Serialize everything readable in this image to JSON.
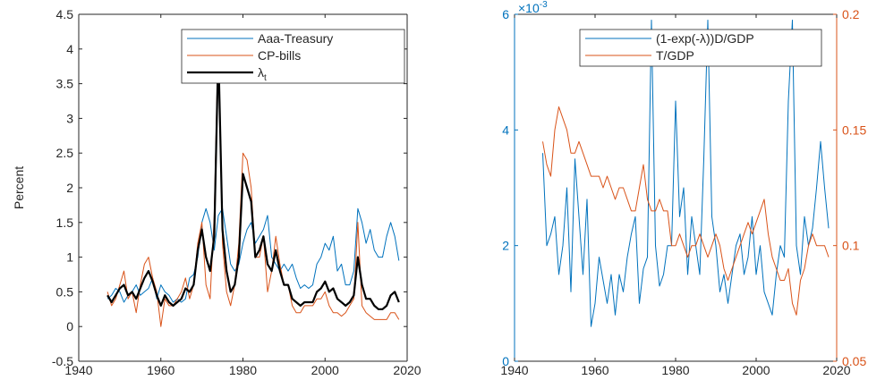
{
  "chart_data": [
    {
      "type": "line",
      "ylabel": "Percent",
      "x": [
        1947,
        1948,
        1949,
        1950,
        1951,
        1952,
        1953,
        1954,
        1955,
        1956,
        1957,
        1958,
        1959,
        1960,
        1961,
        1962,
        1963,
        1964,
        1965,
        1966,
        1967,
        1968,
        1969,
        1970,
        1971,
        1972,
        1973,
        1974,
        1975,
        1976,
        1977,
        1978,
        1979,
        1980,
        1981,
        1982,
        1983,
        1984,
        1985,
        1986,
        1987,
        1988,
        1989,
        1990,
        1991,
        1992,
        1993,
        1994,
        1995,
        1996,
        1997,
        1998,
        1999,
        2000,
        2001,
        2002,
        2003,
        2004,
        2005,
        2006,
        2007,
        2008,
        2009,
        2010,
        2011,
        2012,
        2013,
        2014,
        2015,
        2016,
        2017,
        2018
      ],
      "xlim": [
        1940,
        2020
      ],
      "xticks": [
        1940,
        1960,
        1980,
        2000,
        2020
      ],
      "ylim": [
        -0.5,
        4.5
      ],
      "yticks": [
        -0.5,
        0,
        0.5,
        1,
        1.5,
        2,
        2.5,
        3,
        3.5,
        4,
        4.5
      ],
      "legend": "upper right",
      "grid": false,
      "series": [
        {
          "name": "Aaa-Treasury",
          "color": "#0072bd",
          "width": 1,
          "values": [
            0.4,
            0.45,
            0.55,
            0.5,
            0.35,
            0.45,
            0.5,
            0.6,
            0.45,
            0.5,
            0.55,
            0.7,
            0.4,
            0.6,
            0.5,
            0.45,
            0.35,
            0.4,
            0.35,
            0.4,
            0.7,
            0.75,
            1.0,
            1.5,
            1.7,
            1.5,
            1.1,
            1.6,
            1.7,
            1.3,
            0.9,
            0.8,
            0.9,
            1.2,
            1.4,
            1.5,
            1.2,
            1.3,
            1.4,
            1.6,
            1.0,
            0.9,
            0.8,
            0.9,
            0.8,
            0.9,
            0.7,
            0.55,
            0.6,
            0.55,
            0.6,
            0.9,
            1.0,
            1.2,
            1.1,
            1.3,
            0.8,
            0.9,
            0.6,
            0.6,
            0.8,
            1.7,
            1.5,
            1.2,
            1.4,
            1.1,
            1.0,
            1.0,
            1.3,
            1.5,
            1.3,
            0.95
          ]
        },
        {
          "name": "CP-bills",
          "color": "#d95319",
          "width": 1,
          "values": [
            0.5,
            0.3,
            0.4,
            0.6,
            0.8,
            0.4,
            0.5,
            0.2,
            0.6,
            0.9,
            1.0,
            0.7,
            0.5,
            0.0,
            0.4,
            0.3,
            0.3,
            0.4,
            0.5,
            0.7,
            0.4,
            0.6,
            1.2,
            1.5,
            0.6,
            0.4,
            1.6,
            4.2,
            1.2,
            0.5,
            0.3,
            0.6,
            1.2,
            2.5,
            2.4,
            2.0,
            1.0,
            1.0,
            1.3,
            0.5,
            0.8,
            1.3,
            0.9,
            0.6,
            0.6,
            0.3,
            0.2,
            0.2,
            0.3,
            0.3,
            0.3,
            0.4,
            0.4,
            0.5,
            0.3,
            0.2,
            0.2,
            0.15,
            0.2,
            0.3,
            0.4,
            1.5,
            0.3,
            0.2,
            0.15,
            0.1,
            0.1,
            0.1,
            0.1,
            0.2,
            0.2,
            0.1
          ]
        },
        {
          "name": "λ",
          "subscript": "t",
          "color": "#000000",
          "width": 2.2,
          "values": [
            0.45,
            0.35,
            0.45,
            0.55,
            0.6,
            0.45,
            0.5,
            0.4,
            0.55,
            0.7,
            0.8,
            0.65,
            0.45,
            0.3,
            0.45,
            0.35,
            0.3,
            0.35,
            0.4,
            0.55,
            0.5,
            0.6,
            1.1,
            1.4,
            1.0,
            0.8,
            1.3,
            4.0,
            1.4,
            0.8,
            0.5,
            0.6,
            1.0,
            2.2,
            2.0,
            1.8,
            1.0,
            1.1,
            1.3,
            0.9,
            0.8,
            1.1,
            0.8,
            0.6,
            0.6,
            0.4,
            0.35,
            0.3,
            0.35,
            0.35,
            0.35,
            0.5,
            0.55,
            0.65,
            0.5,
            0.55,
            0.4,
            0.35,
            0.3,
            0.35,
            0.45,
            1.0,
            0.6,
            0.4,
            0.4,
            0.3,
            0.25,
            0.25,
            0.3,
            0.45,
            0.5,
            0.35
          ]
        }
      ]
    },
    {
      "type": "line",
      "x": [
        1947,
        1948,
        1949,
        1950,
        1951,
        1952,
        1953,
        1954,
        1955,
        1956,
        1957,
        1958,
        1959,
        1960,
        1961,
        1962,
        1963,
        1964,
        1965,
        1966,
        1967,
        1968,
        1969,
        1970,
        1971,
        1972,
        1973,
        1974,
        1975,
        1976,
        1977,
        1978,
        1979,
        1980,
        1981,
        1982,
        1983,
        1984,
        1985,
        1986,
        1987,
        1988,
        1989,
        1990,
        1991,
        1992,
        1993,
        1994,
        1995,
        1996,
        1997,
        1998,
        1999,
        2000,
        2001,
        2002,
        2003,
        2004,
        2005,
        2006,
        2007,
        2008,
        2009,
        2010,
        2011,
        2012,
        2013,
        2014,
        2015,
        2016,
        2017,
        2018
      ],
      "xlim": [
        1940,
        2020
      ],
      "xticks": [
        1940,
        1960,
        1980,
        2000,
        2020
      ],
      "ylim": [
        0,
        6
      ],
      "yticks": [
        0,
        2,
        4,
        6
      ],
      "y_multiplier": {
        "base": "×10",
        "exponent": "-3"
      },
      "y2lim": [
        0.05,
        0.2
      ],
      "y2ticks": [
        0.05,
        0.1,
        0.15,
        0.2
      ],
      "yaxis_color": "#0072bd",
      "y2axis_color": "#d95319",
      "legend": "upper right",
      "grid": false,
      "series": [
        {
          "name": "(1-exp(-λ))D/GDP",
          "color": "#0072bd",
          "width": 1,
          "values": [
            3.6,
            2.0,
            2.2,
            2.5,
            1.5,
            2.0,
            3.0,
            1.2,
            3.5,
            2.5,
            1.5,
            2.8,
            0.6,
            1.0,
            1.8,
            1.4,
            1.0,
            1.5,
            0.8,
            1.5,
            1.2,
            1.8,
            2.2,
            2.5,
            1.0,
            1.6,
            1.8,
            5.9,
            2.0,
            1.3,
            1.5,
            2.0,
            2.0,
            4.5,
            2.5,
            3.0,
            1.5,
            2.5,
            2.0,
            1.5,
            3.5,
            5.9,
            2.5,
            2.0,
            1.2,
            1.5,
            1.0,
            1.5,
            2.0,
            2.2,
            1.5,
            1.8,
            2.5,
            1.5,
            2.0,
            1.2,
            1.0,
            0.8,
            1.5,
            2.0,
            1.8,
            4.5,
            5.9,
            2.0,
            1.5,
            2.5,
            2.0,
            2.3,
            3.0,
            3.8,
            3.0,
            2.3
          ]
        },
        {
          "name": "T/GDP",
          "color": "#d95319",
          "width": 1,
          "axis": "y2",
          "values": [
            0.145,
            0.135,
            0.13,
            0.15,
            0.16,
            0.155,
            0.15,
            0.14,
            0.14,
            0.145,
            0.14,
            0.135,
            0.13,
            0.13,
            0.13,
            0.125,
            0.13,
            0.125,
            0.12,
            0.125,
            0.125,
            0.12,
            0.115,
            0.115,
            0.125,
            0.135,
            0.12,
            0.115,
            0.115,
            0.12,
            0.115,
            0.115,
            0.1,
            0.1,
            0.105,
            0.1,
            0.095,
            0.1,
            0.1,
            0.105,
            0.1,
            0.095,
            0.1,
            0.105,
            0.1,
            0.09,
            0.085,
            0.09,
            0.095,
            0.1,
            0.105,
            0.11,
            0.105,
            0.11,
            0.115,
            0.12,
            0.105,
            0.095,
            0.09,
            0.085,
            0.085,
            0.09,
            0.075,
            0.07,
            0.085,
            0.09,
            0.1,
            0.105,
            0.1,
            0.1,
            0.1,
            0.095
          ]
        }
      ]
    }
  ]
}
